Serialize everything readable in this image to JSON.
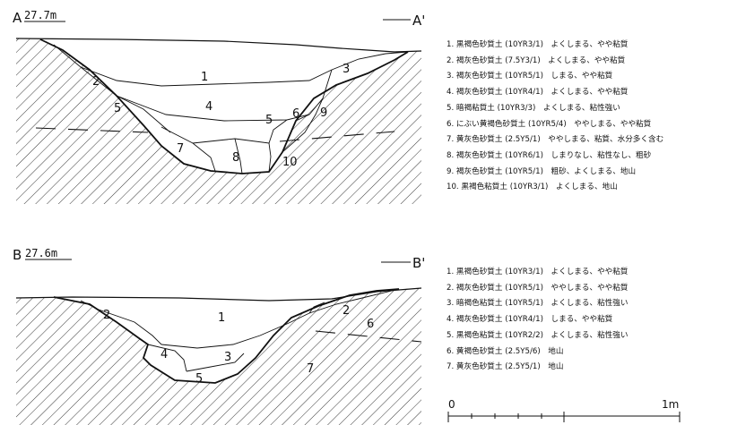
{
  "sectionA": {
    "label": "A",
    "label_end": "A'",
    "elevation": "27.7m",
    "layer_labels": [
      "1",
      "2",
      "3",
      "4",
      "5",
      "5",
      "6",
      "7",
      "8",
      "9",
      "10"
    ],
    "legend": [
      "1. 黒褐色砂質土 (10YR3/1)　よくしまる、やや粘質",
      "2. 褐灰色砂質土 (7.5Y3/1)　よくしまる、やや粘質",
      "3. 褐灰色砂質土 (10YR5/1)　しまる、やや粘質",
      "4. 褐灰色砂質土 (10YR4/1)　よくしまる、やや粘質",
      "5. 暗褐粘質土 (10YR3/3)　よくしまる、粘性強い",
      "6. にぶい黄褐色砂質土 (10YR5/4)　ややしまる、やや粘質",
      "7. 黄灰色砂質土 (2.5Y5/1)　ややしまる、粘質、水分多く含む",
      "8. 褐灰色砂質土 (10YR6/1)　しまりなし、粘性なし、粗砂",
      "9. 褐灰色砂質土 (10YR5/1)　粗砂、よくしまる、地山",
      "10. 黒褐色粘質土 (10YR3/1)　よくしまる、地山"
    ]
  },
  "sectionB": {
    "label": "B",
    "label_end": "B'",
    "elevation": "27.6m",
    "layer_labels": [
      "1",
      "2",
      "2",
      "3",
      "4",
      "5",
      "6",
      "7"
    ],
    "legend": [
      "1. 黒褐色砂質土 (10YR3/1)　よくしまる、やや粘質",
      "2. 褐灰色砂質土 (10YR5/1)　ややしまる、やや粘質",
      "3. 暗褐色粘質土 (10YR5/1)　よくしまる、粘性強い",
      "4. 褐灰色砂質土 (10YR4/1)　しまる、やや粘質",
      "5. 黒褐色粘質土 (10YR2/2)　よくしまる、粘性強い",
      "6. 黄褐色砂質土 (2.5Y5/6)　地山",
      "7. 黄灰色砂質土 (2.5Y5/1)　地山"
    ]
  },
  "scale": {
    "start": "0",
    "end": "1m"
  }
}
